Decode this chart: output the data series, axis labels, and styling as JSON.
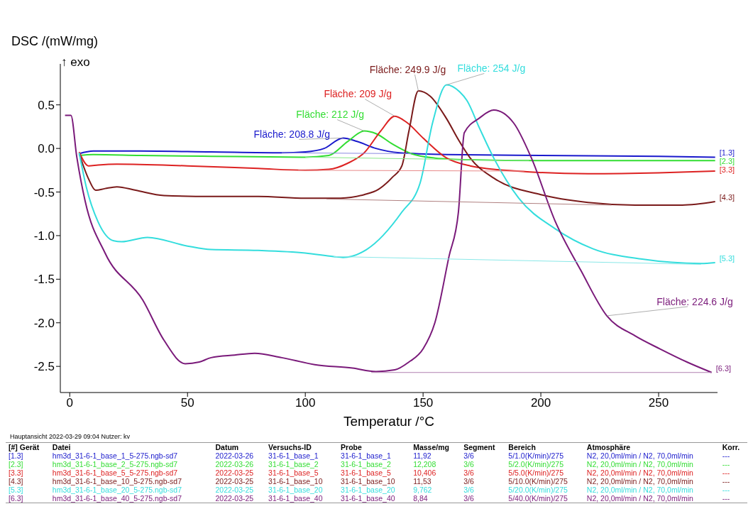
{
  "chart_data": {
    "type": "line",
    "xlabel": "Temperatur /°C",
    "ylabel": "DSC /(mW/mg)",
    "xlim": [
      -4,
      275
    ],
    "ylim": [
      -2.8,
      0.97
    ],
    "xticks": [
      0,
      50,
      100,
      150,
      200,
      250
    ],
    "yticks": [
      -2.5,
      {
        "value": -2,
        "label": "-2.0"
      },
      -1.5,
      {
        "value": -1,
        "label": "-1.0"
      },
      -0.5,
      {
        "value": 0,
        "label": "0.0"
      },
      0.5
    ],
    "grid": false,
    "legend": false,
    "marker": "none",
    "line_style": "solid",
    "series": [
      {
        "name": "[1.3]",
        "color": "#1a1acc",
        "x": [
          4,
          10,
          30,
          60,
          90,
          100,
          108,
          116,
          122,
          130,
          140,
          160,
          200,
          250,
          274
        ],
        "values": [
          -0.06,
          -0.03,
          -0.03,
          -0.04,
          -0.05,
          -0.04,
          0.0,
          0.12,
          0.08,
          0.0,
          -0.05,
          -0.07,
          -0.08,
          -0.09,
          -0.1
        ]
      },
      {
        "name": "[2.3]",
        "color": "#33dd33",
        "x": [
          4,
          10,
          30,
          60,
          100,
          110,
          118,
          125,
          130,
          137,
          145,
          155,
          170,
          200,
          274
        ],
        "values": [
          -0.08,
          -0.07,
          -0.08,
          -0.09,
          -0.1,
          -0.08,
          0.08,
          0.2,
          0.17,
          0.05,
          -0.06,
          -0.11,
          -0.13,
          -0.14,
          -0.14
        ]
      },
      {
        "name": "[3.3]",
        "color": "#dd2222",
        "x": [
          4,
          8,
          12,
          20,
          50,
          80,
          100,
          110,
          118,
          125,
          132,
          138,
          143,
          150,
          160,
          170,
          190,
          220,
          250,
          274
        ],
        "values": [
          -0.04,
          -0.2,
          -0.19,
          -0.18,
          -0.2,
          -0.23,
          -0.25,
          -0.24,
          -0.17,
          -0.05,
          0.2,
          0.37,
          0.3,
          0.12,
          -0.11,
          -0.2,
          -0.26,
          -0.29,
          -0.28,
          -0.26
        ]
      },
      {
        "name": "[4.3]",
        "color": "#7a1a1a",
        "x": [
          4,
          8,
          11,
          15,
          20,
          28,
          40,
          60,
          80,
          100,
          115,
          125,
          131,
          137,
          141,
          144,
          148,
          153,
          160,
          165,
          170,
          180,
          200,
          220,
          240,
          260,
          274
        ],
        "values": [
          -0.06,
          -0.35,
          -0.48,
          -0.46,
          -0.44,
          -0.48,
          -0.54,
          -0.55,
          -0.55,
          -0.57,
          -0.57,
          -0.53,
          -0.47,
          -0.33,
          -0.2,
          0.2,
          0.66,
          0.6,
          0.34,
          0.1,
          -0.11,
          -0.34,
          -0.53,
          -0.62,
          -0.65,
          -0.65,
          -0.61
        ]
      },
      {
        "name": "[5.3]",
        "color": "#33dddd",
        "x": [
          4,
          7,
          12,
          18.7,
          22,
          33,
          50,
          60,
          80,
          100,
          112,
          116,
          126,
          141,
          148.7,
          154,
          160,
          165.5,
          168.6,
          174,
          180,
          190.6,
          206,
          222,
          243,
          268,
          274
        ],
        "values": [
          -0.05,
          -0.44,
          -0.84,
          -1.06,
          -1.07,
          -1.02,
          -1.12,
          -1.16,
          -1.17,
          -1.2,
          -1.24,
          -1.25,
          -1.16,
          -0.73,
          -0.4,
          0.29,
          0.73,
          0.65,
          0.55,
          0.23,
          -0.11,
          -0.57,
          -0.92,
          -1.15,
          -1.27,
          -1.32,
          -1.31
        ]
      },
      {
        "name": "[6.3]",
        "color": "#7a1a7a",
        "x": [
          -2,
          0.5,
          3,
          6.5,
          15,
          31,
          40,
          49,
          55,
          60,
          70,
          78.5,
          90,
          104,
          120,
          130,
          138,
          144,
          150,
          155,
          161,
          165,
          167.5,
          174,
          180,
          188.5,
          196,
          206,
          217,
          228,
          240,
          250.6,
          262,
          272.5
        ],
        "values": [
          0.38,
          0.38,
          -0.1,
          -0.6,
          -1.2,
          -1.74,
          -2.2,
          -2.47,
          -2.45,
          -2.4,
          -2.37,
          -2.35,
          -2.4,
          -2.48,
          -2.52,
          -2.56,
          -2.54,
          -2.45,
          -2.3,
          -2.0,
          -1.24,
          -0.73,
          0.18,
          0.35,
          0.44,
          0.29,
          -0.11,
          -0.83,
          -1.4,
          -1.92,
          -2.15,
          -2.3,
          -2.45,
          -2.57
        ]
      },
      {
        "color": "#8a8ae0",
        "x": [
          90,
          145
        ],
        "values": [
          -0.05,
          -0.06
        ]
      },
      {
        "color": "#8ae88a",
        "x": [
          100,
          195
        ],
        "values": [
          -0.1,
          -0.14
        ]
      },
      {
        "color": "#e88a8a",
        "x": [
          97,
          193
        ],
        "values": [
          -0.25,
          -0.26
        ]
      },
      {
        "color": "#b08080",
        "x": [
          109,
          230
        ],
        "values": [
          -0.58,
          -0.65
        ]
      },
      {
        "color": "#8ae8e8",
        "x": [
          112,
          268
        ],
        "values": [
          -1.24,
          -1.33
        ]
      },
      {
        "color": "#b080b0",
        "x": [
          128,
          272.5
        ],
        "values": [
          -2.57,
          -2.57
        ]
      }
    ],
    "annotations": [
      {
        "text": "Fläche: 208.8 J/g",
        "x": 116,
        "y": 0.12
      },
      {
        "text": "Fläche: 212 J/g",
        "x": 125,
        "y": 0.2
      },
      {
        "text": "Fläche: 209 J/g",
        "x": 138,
        "y": 0.37
      },
      {
        "text": "Fläche: 249.9 J/g",
        "x": 148,
        "y": 0.66
      },
      {
        "text": "Fläche: 254 J/g",
        "x": 160,
        "y": 0.73
      },
      {
        "text": "Fläche: 224.6 J/g",
        "x": 228,
        "y": -1.92
      },
      "↑ exo",
      "Hauptansicht   2022-03-29 09:04   Nutzer: kv",
      "[#] Gerät\tDatei\tDatum\tVersuchs-ID\tProbe\tMasse/mg\tSegment\tBereich\tAtmosphäre\tKorr.",
      "[1.3]\thm3d_31-6-1_base_1_5-275.ngb-sd7\t2022-03-26\t31-6-1_base_1\t31-6-1_base_1\t11,92\t3/6\t5/1.0(K/min)/275\tN2, 20,0ml/min / N2, 70,0ml/min\t---",
      "[2.3]\thm3d_31-6-1_base_2_5-275.ngb-sd7\t2022-03-26\t31-6-1_base_2\t31-6-1_base_2\t12,208\t3/6\t5/2.0(K/min)/275\tN2, 20,0ml/min / N2, 70,0ml/min\t---",
      "[3.3]\thm3d_31-6-1_base_5_5-275.ngb-sd7\t2022-03-25\t31-6-1_base_5\t31-6-1_base_5\t10,406\t3/6\t5/5.0(K/min)/275\tN2, 20,0ml/min / N2, 70,0ml/min\t---",
      "[4.3]\thm3d_31-6-1_base_10_5-275.ngb-sd7\t2022-03-25\t31-6-1_base_10\t31-6-1_base_10\t11,53\t3/6\t5/10.0(K/min)/275\tN2, 20,0ml/min / N2, 70,0ml/min\t---",
      "[5.3]\thm3d_31-6-1_base_20_5-275.ngb-sd7\t2022-03-25\t31-6-1_base_20\t31-6-1_base_20\t9,762\t3/6\t5/20.0(K/min)/275\tN2, 20,0ml/min / N2, 70,0ml/min\t---",
      "[6.3]\thm3d_31-6-1_base_40_5-275.ngb-sd7\t2022-03-25\t31-6-1_base_40\t31-6-1_base_40\t8,84\t3/6\t5/40.0(K/min)/275\tN2, 20,0ml/min / N2, 70,0ml/min\t---"
    ]
  }
}
